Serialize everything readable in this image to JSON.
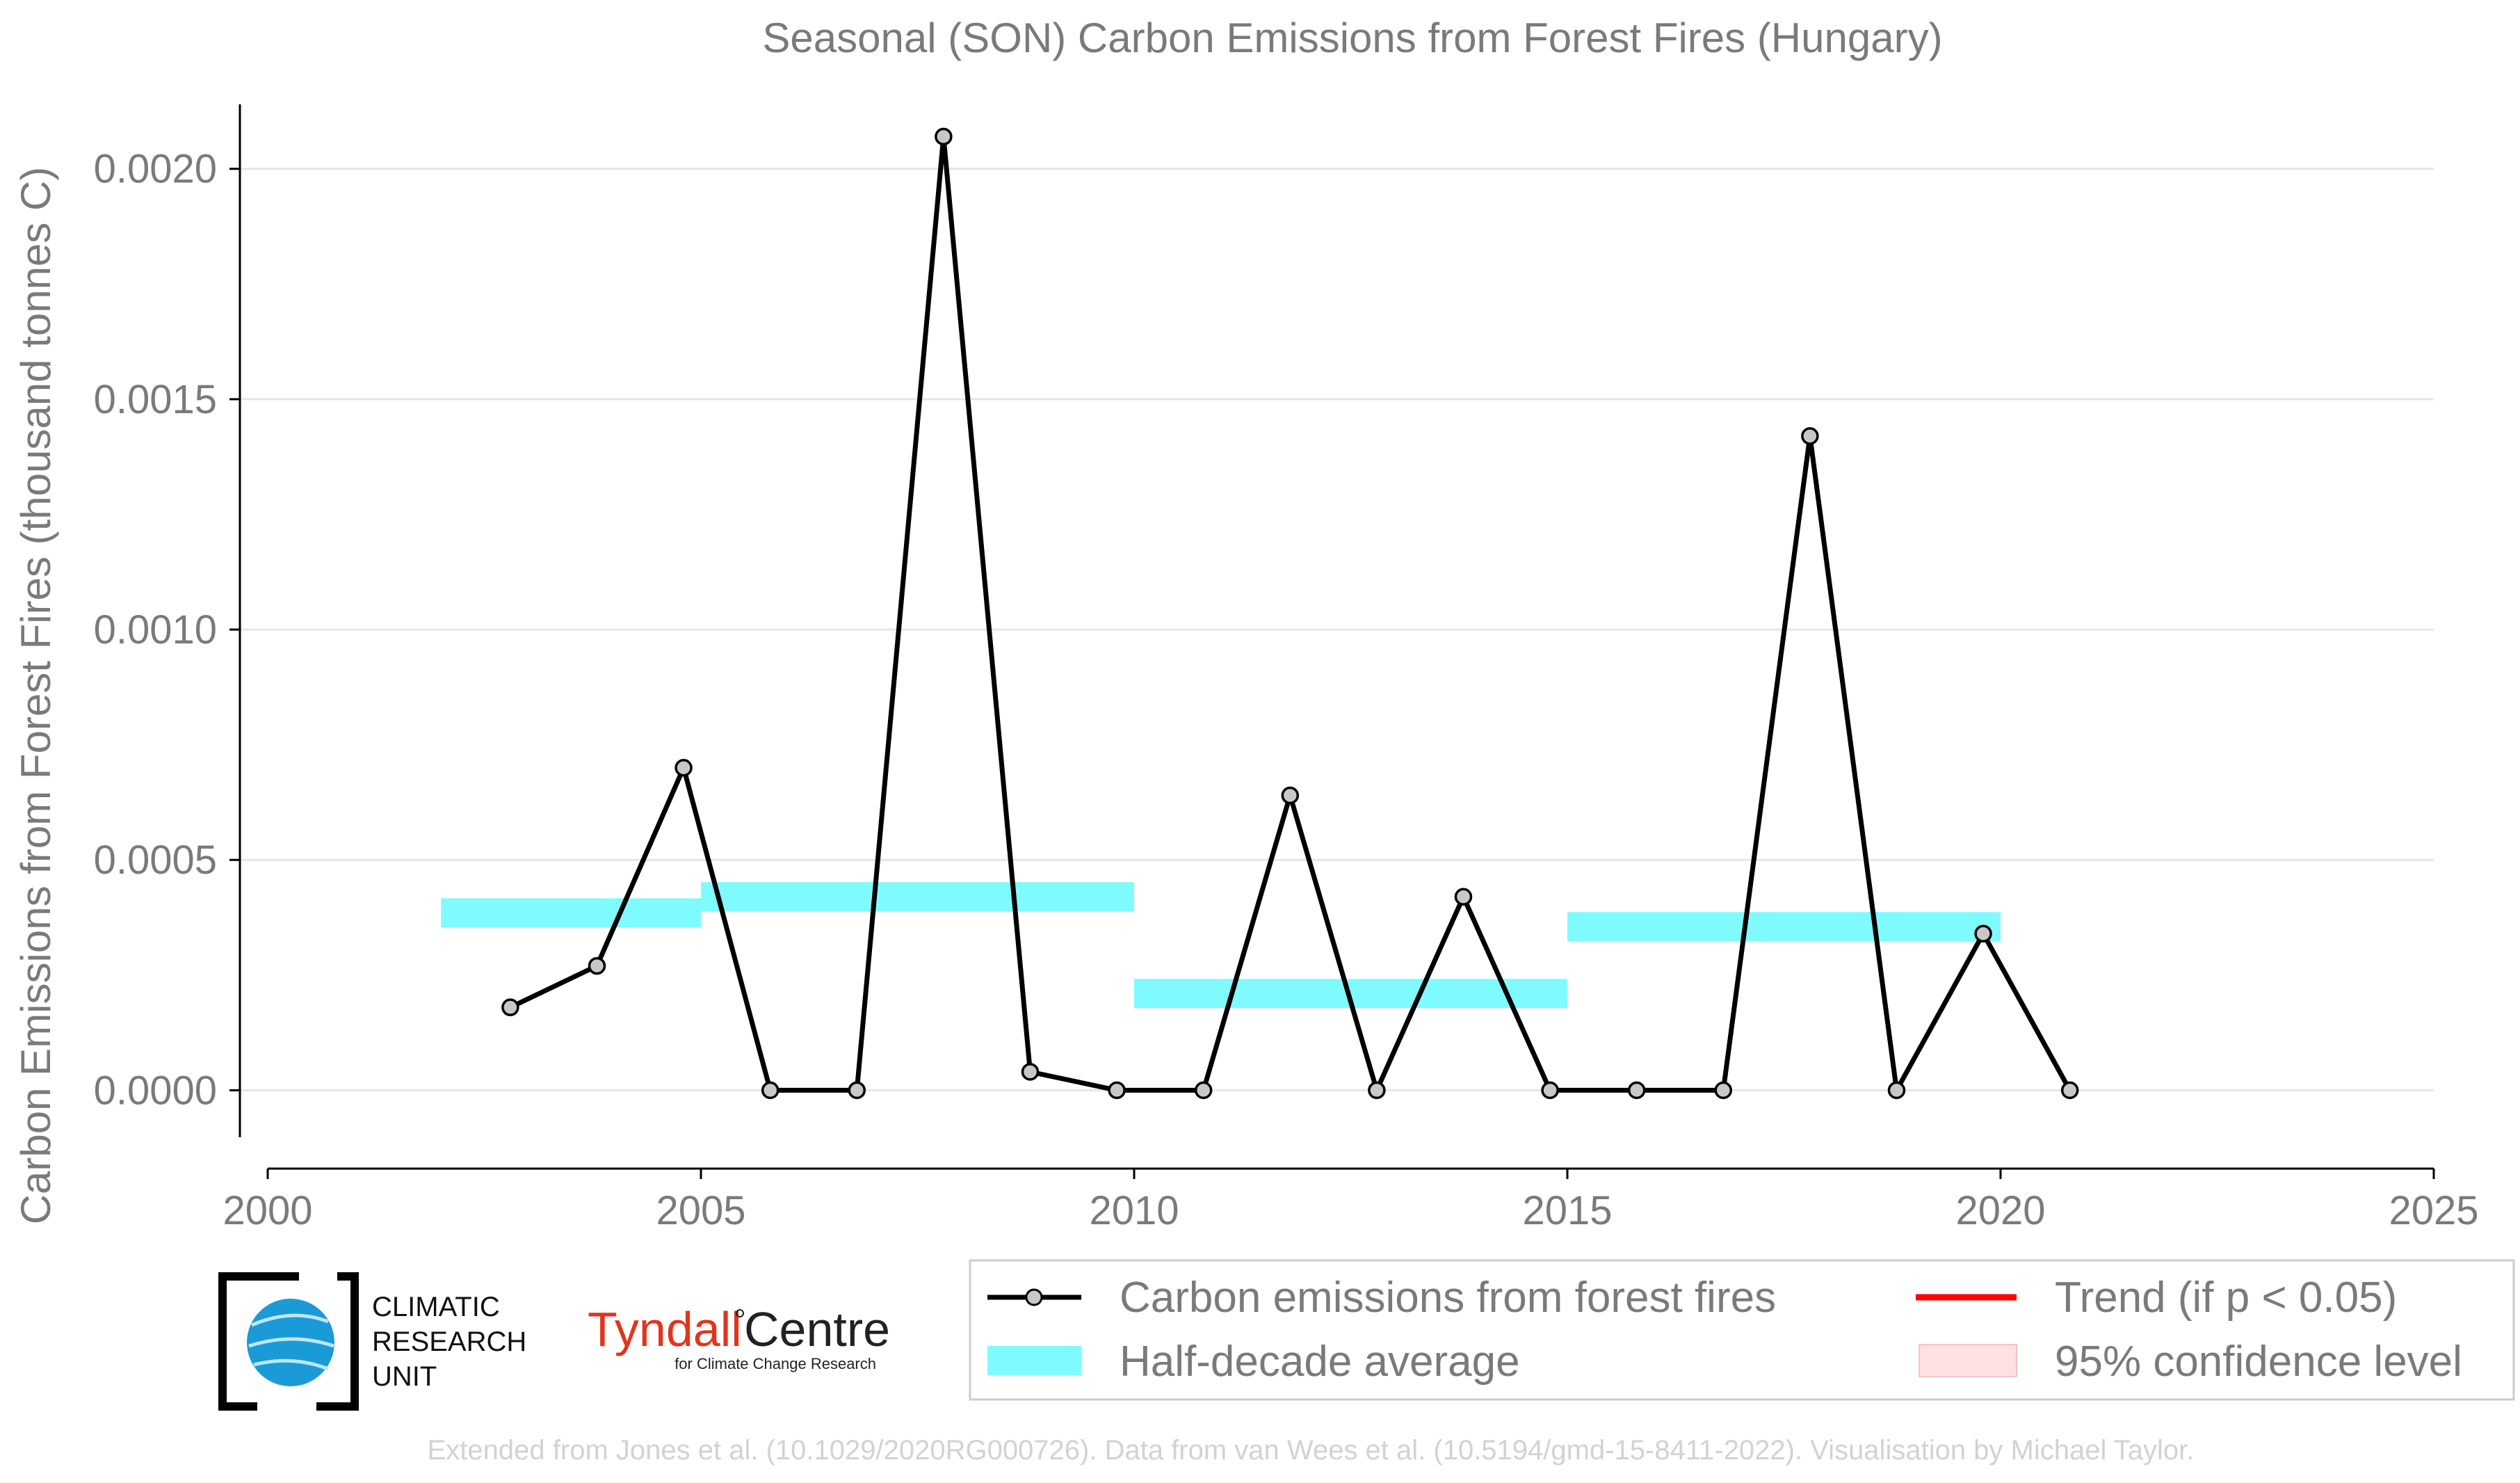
{
  "chart_data": {
    "type": "line",
    "title": "Seasonal (SON) Carbon Emissions from Forest Fires (Hungary)",
    "xlabel": "",
    "ylabel": "Carbon Emissions from Forest Fires (thousand tonnes C)",
    "xlim": [
      2000,
      2025
    ],
    "ylim": [
      -0.00017,
      0.00214
    ],
    "x_ticks": [
      2000,
      2005,
      2010,
      2015,
      2020,
      2025
    ],
    "x_tick_labels": [
      "2000",
      "2005",
      "2010",
      "2015",
      "2020",
      "2025"
    ],
    "y_ticks": [
      0.0,
      0.0005,
      0.001,
      0.0015,
      0.002
    ],
    "y_tick_labels": [
      "0.0000",
      "0.0005",
      "0.0010",
      "0.0015",
      "0.0020"
    ],
    "grid": "horizontal",
    "series": [
      {
        "name": "Carbon emissions from forest fires",
        "color": "#000000",
        "marker_fill": "#c8c8c8",
        "x": [
          2002.8,
          2003.8,
          2004.8,
          2005.8,
          2006.8,
          2007.8,
          2008.8,
          2009.8,
          2010.8,
          2011.8,
          2012.8,
          2013.8,
          2014.8,
          2015.8,
          2016.8,
          2017.8,
          2018.8,
          2019.8,
          2020.8
        ],
        "y": [
          0.00018,
          0.00027,
          0.0007,
          0.0,
          0.0,
          0.00207,
          4e-05,
          0.0,
          0.0,
          0.00064,
          0.0,
          0.00042,
          0.0,
          0.0,
          0.0,
          0.00142,
          0.0,
          0.00034,
          0.0
        ]
      },
      {
        "name": "Half-decade average",
        "color": "#7ffbff",
        "segments": [
          {
            "x_start": 2002,
            "x_end": 2005,
            "y": 0.000385
          },
          {
            "x_start": 2005,
            "x_end": 2010,
            "y": 0.00042
          },
          {
            "x_start": 2010,
            "x_end": 2015,
            "y": 0.00021
          },
          {
            "x_start": 2015,
            "x_end": 2020,
            "y": 0.000355
          }
        ]
      }
    ],
    "legend": {
      "placement": "bottom-right",
      "entries": [
        {
          "label": "Carbon emissions from forest fires",
          "color": "#000000"
        },
        {
          "label": "Trend (if p < 0.05)",
          "color": "#ff0000"
        },
        {
          "label": "Half-decade average",
          "color": "#7ffbff"
        },
        {
          "label": "95% confidence level",
          "color": "#fde0e0"
        }
      ]
    }
  },
  "logos": {
    "cru_lines": [
      "CLIMATIC",
      "RESEARCH",
      "UNIT"
    ],
    "tyndall_main": "Tyndall",
    "tyndall_centre": "Centre",
    "tyndall_sub": "for Climate Change Research"
  },
  "credit": "Extended from Jones et al. (10.1029/2020RG000726). Data from van Wees et al. (10.5194/gmd-15-8411-2022). Visualisation by Michael Taylor."
}
